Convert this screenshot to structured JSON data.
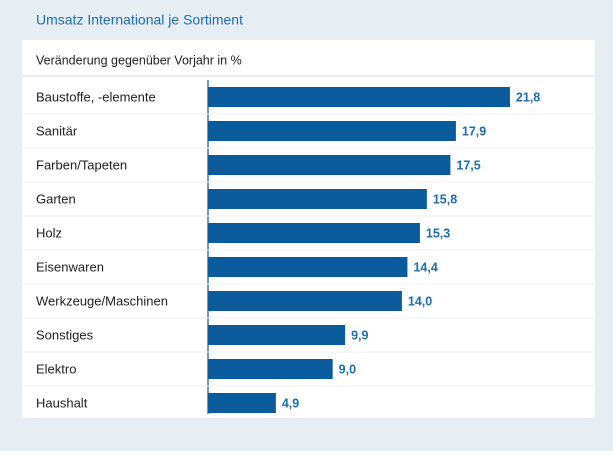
{
  "chart_data": {
    "type": "bar",
    "orientation": "horizontal",
    "title": "Umsatz International je Sortiment",
    "subtitle": "Veränderung gegenüber Vorjahr in %",
    "categories": [
      "Baustoffe, -elemente",
      "Sanitär",
      "Farben/Tapeten",
      "Garten",
      "Holz",
      "Eisenwaren",
      "Werkzeuge/Maschinen",
      "Sonstiges",
      "Elektro",
      "Haushalt"
    ],
    "values": [
      21.8,
      17.9,
      17.5,
      15.8,
      15.3,
      14.4,
      14.0,
      9.9,
      9.0,
      4.9
    ],
    "value_labels": [
      "21,8",
      "17,9",
      "17,5",
      "15,8",
      "15,3",
      "14,4",
      "14,0",
      "9,9",
      "9,0",
      "4,9"
    ],
    "color": "#0b5a9b"
  }
}
